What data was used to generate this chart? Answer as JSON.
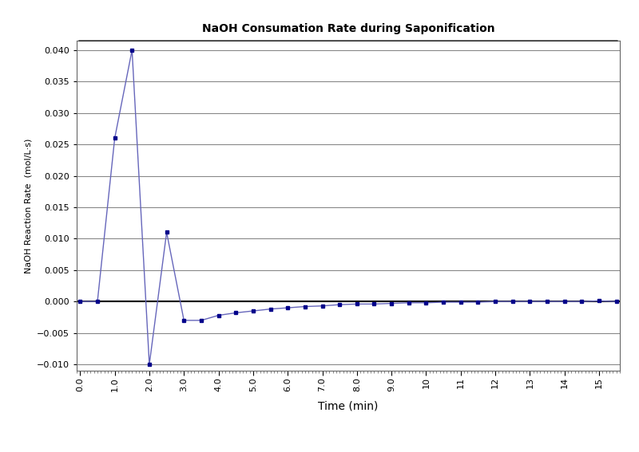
{
  "title": "NaOH Consumation Rate during Saponification",
  "xlabel": "Time (min)",
  "ylabel": "NaOH Reaction Rate  (mol/L·s)",
  "xlim": [
    -0.1,
    15.6
  ],
  "ylim": [
    -0.011,
    0.0415
  ],
  "yticks": [
    -0.01,
    -0.005,
    0.0,
    0.005,
    0.01,
    0.015,
    0.02,
    0.025,
    0.03,
    0.035,
    0.04
  ],
  "line_color": "#6666bb",
  "dot_color": "#00008B",
  "background_color": "#ffffff",
  "grid_color": "#888888",
  "zeroline_color": "#000000",
  "x": [
    0.0,
    0.5,
    1.0,
    1.5,
    2.0,
    2.5,
    3.0,
    3.5,
    4.0,
    4.5,
    5.0,
    5.5,
    6.0,
    6.5,
    7.0,
    7.5,
    8.0,
    8.5,
    9.0,
    9.5,
    10.0,
    10.5,
    11.0,
    11.5,
    12.0,
    12.5,
    13.0,
    13.5,
    14.0,
    14.5,
    15.0,
    15.5
  ],
  "y": [
    0.0,
    0.0,
    0.026,
    0.04,
    -0.01,
    0.011,
    -0.003,
    -0.003,
    -0.0022,
    -0.0018,
    -0.0015,
    -0.0012,
    -0.001,
    -0.0008,
    -0.0007,
    -0.0005,
    -0.0004,
    -0.0004,
    -0.0003,
    -0.0002,
    -0.0002,
    -0.0001,
    -0.0001,
    -0.0001,
    0.0,
    0.0,
    0.0,
    0.0,
    0.0,
    0.0,
    0.0001,
    0.0
  ],
  "xtick_labels": [
    "0.0",
    "1.0",
    "2.0",
    "3.0",
    "4.0",
    "5.0",
    "6.0",
    "7.0",
    "8.0",
    "9.0",
    "10",
    "11",
    "12",
    "13",
    "14",
    "15"
  ],
  "xtick_positions": [
    0.0,
    1.0,
    2.0,
    3.0,
    4.0,
    5.0,
    6.0,
    7.0,
    8.0,
    9.0,
    10.0,
    11.0,
    12.0,
    13.0,
    14.0,
    15.0
  ]
}
